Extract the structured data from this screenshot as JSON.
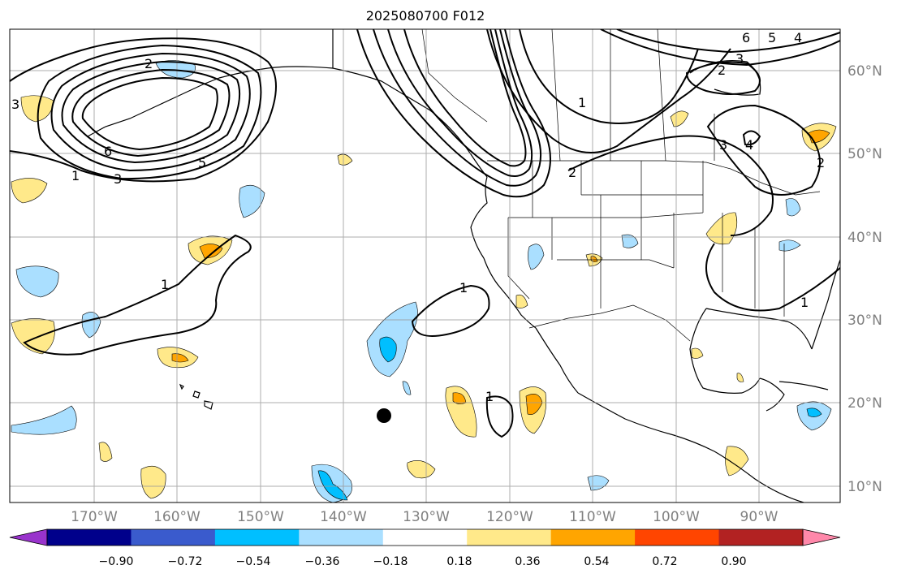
{
  "title": "2025080700 F012",
  "lat_labels": [
    "60°N",
    "50°N",
    "40°N",
    "30°N",
    "20°N",
    "10°N"
  ],
  "lon_labels": [
    "170°W",
    "160°W",
    "150°W",
    "140°W",
    "130°W",
    "120°W",
    "110°W",
    "100°W",
    "90°W"
  ],
  "colorbar": {
    "tick_labels": [
      "−0.90",
      "−0.72",
      "−0.54",
      "−0.36",
      "−0.18",
      "0.18",
      "0.36",
      "0.54",
      "0.72",
      "0.90"
    ],
    "colors": [
      "#9933cc",
      "#00008b",
      "#3a5bcd",
      "#00bfff",
      "#aadfff",
      "#ffffff",
      "#ffe98a",
      "#ffa500",
      "#ff4500",
      "#b22222",
      "#ff88aa"
    ]
  },
  "contour_labels": [
    "1",
    "1",
    "1",
    "1",
    "1",
    "1",
    "2",
    "2",
    "2",
    "2",
    "3",
    "3",
    "3",
    "3",
    "4",
    "4",
    "5",
    "5",
    "6",
    "6"
  ]
}
